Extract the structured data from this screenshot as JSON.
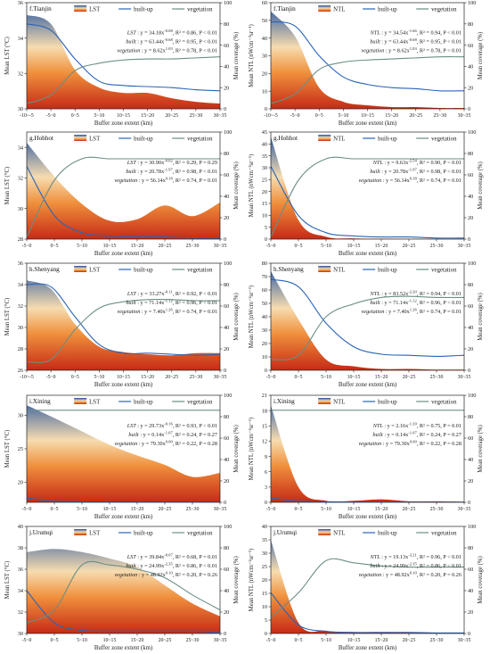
{
  "colors": {
    "builtup": "#2a64b6",
    "vegetation": "#6b8e86",
    "blue_top": "#1e4f9e",
    "cream": "#f6dcb0",
    "orange": "#f0903c",
    "red_bottom": "#c62a16"
  },
  "chart_data": [
    {
      "id": "tianjin-lst",
      "type": "area",
      "panel_label": "f.Tianjin",
      "metric": "LST",
      "legend": [
        "LST",
        "built-up",
        "vegetation"
      ],
      "ylabel": "Mean LST (°C)",
      "y2label": "Mean coverage (%)",
      "xlabel": "Buffer zone extent (km)",
      "ylim": [
        30,
        36
      ],
      "yticks": [
        30,
        32,
        34,
        36
      ],
      "y2lim": [
        0,
        100
      ],
      "y2ticks": [
        0,
        20,
        40,
        60,
        80,
        100
      ],
      "categories": [
        "-10~-5",
        "-5~0",
        "0~5",
        "5~10",
        "10~15",
        "15~20",
        "20~25",
        "25~30",
        "30~35"
      ],
      "series": [
        {
          "name": "LST",
          "axis": "left",
          "values": [
            35.3,
            34.8,
            32.2,
            31.2,
            30.9,
            30.9,
            30.6,
            30.4,
            30.3
          ]
        },
        {
          "name": "built-up",
          "axis": "right",
          "values": [
            80,
            74,
            47,
            26,
            22,
            21,
            20,
            18,
            17
          ]
        },
        {
          "name": "vegetation",
          "axis": "right",
          "values": [
            5,
            13,
            36,
            43,
            46,
            47,
            47,
            48,
            49
          ]
        }
      ],
      "equations": [
        "LST : y = 34.18x^{-0.08}, R² = 0.86, P < 0.01",
        "built : y = 63.44x^{-0.68}, R² = 0.95, P < 0.01",
        "vegetation : y = 8.62x^{1.03}, R² = 0.78, P < 0.01"
      ]
    },
    {
      "id": "tianjin-ntl",
      "type": "area",
      "panel_label": "f.Tianjin",
      "metric": "NTL",
      "legend": [
        "NTL",
        "built-up",
        "vegetation"
      ],
      "ylabel": "Mean NTL (nWcm⁻²sr⁻¹)",
      "y2label": "Mean coverage (%)",
      "xlabel": "Buffer zone extent (km)",
      "ylim": [
        0,
        60
      ],
      "yticks": [
        0,
        10,
        20,
        30,
        40,
        50,
        60
      ],
      "y2lim": [
        0,
        100
      ],
      "y2ticks": [
        0,
        20,
        40,
        60,
        80,
        100
      ],
      "categories": [
        "-10~-5",
        "-5~0",
        "0~5",
        "5~10",
        "10~15",
        "15~20",
        "20~25",
        "25~30",
        "30~35"
      ],
      "series": [
        {
          "name": "NTL",
          "axis": "left",
          "values": [
            55,
            41,
            12,
            4,
            2,
            1,
            1,
            0.5,
            0.5
          ]
        },
        {
          "name": "built-up",
          "axis": "right",
          "values": [
            82,
            78,
            50,
            30,
            23,
            20,
            19,
            17,
            17
          ]
        },
        {
          "name": "vegetation",
          "axis": "right",
          "values": [
            5,
            14,
            37,
            44,
            46,
            47,
            48,
            49,
            49
          ]
        }
      ],
      "equations": [
        "NTL : y = 34.54x^{-1.66}, R² = 0.94, P < 0.01",
        "built : y = 63.44x^{-0.68}, R² = 0.95, P < 0.01",
        "vegetation : y = 8.62x^{1.03}, R² = 0.78, P < 0.01"
      ]
    },
    {
      "id": "hohhot-lst",
      "type": "area",
      "panel_label": "g.Hohhot",
      "metric": "LST",
      "legend": [
        "LST",
        "built-up",
        "vegetation"
      ],
      "ylabel": "Mean LST (°C)",
      "y2label": "Mean coverage (%)",
      "xlabel": "Buffer zone extent (km)",
      "ylim": [
        28,
        35
      ],
      "yticks": [
        28,
        30,
        32,
        34
      ],
      "y2lim": [
        0,
        100
      ],
      "y2ticks": [
        0,
        20,
        40,
        60,
        80,
        100
      ],
      "categories": [
        "-5~0",
        "0~5",
        "5~10",
        "10~15",
        "15~20",
        "20~25",
        "25~30",
        "30~35"
      ],
      "series": [
        {
          "name": "LST",
          "axis": "left",
          "values": [
            34.3,
            32.1,
            30.3,
            29.2,
            29.3,
            30.2,
            29.5,
            30.4
          ]
        },
        {
          "name": "built-up",
          "axis": "right",
          "values": [
            68,
            22,
            6,
            3,
            2,
            2,
            1,
            1
          ]
        },
        {
          "name": "vegetation",
          "axis": "right",
          "values": [
            2,
            55,
            75,
            75,
            75,
            75,
            75,
            75
          ]
        }
      ],
      "equations": [
        "LST : y = 30.90x^{-0.02}, R² = 0.29, P = 0.29",
        "built : y = 20.78x^{-1.97}, R² = 0.98, P < 0.01",
        "vegetation : y = 56.14x^{0.18}, R² = 0.74, P = 0.01"
      ]
    },
    {
      "id": "hohhot-ntl",
      "type": "area",
      "panel_label": "g.Hohhot",
      "metric": "NTL",
      "legend": [
        "NTL",
        "built-up",
        "vegetation"
      ],
      "ylabel": "Mean NTL (nWcm⁻²sr⁻¹)",
      "y2label": "Mean coverage (%)",
      "xlabel": "Buffer zone extent (km)",
      "ylim": [
        0,
        45
      ],
      "yticks": [
        0,
        5,
        10,
        15,
        20,
        25,
        30,
        35,
        40,
        45
      ],
      "y2lim": [
        0,
        100
      ],
      "y2ticks": [
        0,
        20,
        40,
        60,
        80,
        100
      ],
      "categories": [
        "-5~0",
        "0~5",
        "5~10",
        "10~15",
        "15~20",
        "20~25",
        "25~30",
        "30~35"
      ],
      "series": [
        {
          "name": "NTL",
          "axis": "left",
          "values": [
            43,
            8,
            1,
            0.3,
            0.2,
            0.1,
            0.1,
            0.1
          ]
        },
        {
          "name": "built-up",
          "axis": "right",
          "values": [
            68,
            22,
            6,
            3,
            2,
            2,
            1,
            1
          ]
        },
        {
          "name": "vegetation",
          "axis": "right",
          "values": [
            2,
            55,
            75,
            75,
            75,
            75,
            75,
            75
          ]
        }
      ],
      "equations": [
        "NTL : y = 9.63x^{-2.54}, R² = 0.90, P < 0.01",
        "built : y = 20.78x^{-1.97}, R² = 0.98, P < 0.01",
        "vegetation : y = 56.14x^{0.18}, R² = 0.74, P = 0.01"
      ]
    },
    {
      "id": "shenyang-lst",
      "type": "area",
      "panel_label": "h.Shenyang",
      "metric": "LST",
      "legend": [
        "LST",
        "built-up",
        "vegetation"
      ],
      "ylabel": "Mean LST (°C)",
      "y2label": "Mean coverage (%)",
      "xlabel": "Buffer zone extent (km)",
      "ylim": [
        26,
        36
      ],
      "yticks": [
        26,
        28,
        30,
        32,
        34,
        36
      ],
      "y2lim": [
        0,
        100
      ],
      "y2ticks": [
        0,
        20,
        40,
        60,
        80,
        100
      ],
      "categories": [
        "-10~-5",
        "-5~0",
        "0~5",
        "5~10",
        "10~15",
        "15~20",
        "20~25",
        "25~30",
        "30~35"
      ],
      "series": [
        {
          "name": "LST",
          "axis": "left",
          "values": [
            34.4,
            33.6,
            30.3,
            28.2,
            27.7,
            27.5,
            27.4,
            27.6,
            27.6
          ]
        },
        {
          "name": "built-up",
          "axis": "right",
          "values": [
            80,
            78,
            50,
            24,
            16,
            16,
            15,
            14,
            15
          ]
        },
        {
          "name": "vegetation",
          "axis": "right",
          "values": [
            8,
            10,
            38,
            58,
            64,
            66,
            66,
            65,
            65
          ]
        }
      ],
      "equations": [
        "LST : y = 33.27x^{-0.11}, R² = 0.92, P < 0.01",
        "built : y = 71.14x^{-1.12}, R² = 0.96, P < 0.01",
        "vegetation : y = 7.40x^{1.26}, R² = 0.74, P = 0.01"
      ]
    },
    {
      "id": "shenyang-ntl",
      "type": "area",
      "panel_label": "h.Shenyang",
      "metric": "NTL",
      "legend": [
        "NTL",
        "built-up",
        "vegetation"
      ],
      "ylabel": "Mean NTL (nWcm⁻²sr⁻¹)",
      "y2label": "Mean coverage (%)",
      "xlabel": "Buffer zone extent (km)",
      "ylim": [
        0,
        80
      ],
      "yticks": [
        0,
        10,
        20,
        30,
        40,
        50,
        60,
        70,
        80
      ],
      "y2lim": [
        0,
        100
      ],
      "y2ticks": [
        0,
        20,
        40,
        60,
        80,
        100
      ],
      "categories": [
        "-5~0",
        "0~5",
        "5~10",
        "10~15",
        "15~20",
        "20~25",
        "25~30",
        "30~35"
      ],
      "series": [
        {
          "name": "NTL",
          "axis": "left",
          "values": [
            74,
            38,
            8,
            3,
            1,
            1,
            0.5,
            0.5
          ]
        },
        {
          "name": "built-up",
          "axis": "right",
          "values": [
            85,
            78,
            44,
            22,
            15,
            14,
            13,
            14
          ]
        },
        {
          "name": "vegetation",
          "axis": "right",
          "values": [
            10,
            14,
            50,
            62,
            68,
            69,
            68,
            68
          ]
        }
      ],
      "equations": [
        "NTL : y = 83.52x^{-2.20}, R² = 0.94, P < 0.01",
        "built : y = 71.14x^{-1.12}, R² = 0.96, P < 0.01",
        "vegetation : y = 7.40x^{1.26}, R² = 0.74, P = 0.01"
      ]
    },
    {
      "id": "xining-lst",
      "type": "area",
      "panel_label": "i.Xining",
      "metric": "LST",
      "legend": [
        "LST",
        "built-up",
        "vegetation"
      ],
      "ylabel": "Mean LST (°C)",
      "y2label": "Mean coverage (%)",
      "xlabel": "Buffer zone extent (km)",
      "ylim": [
        17,
        33
      ],
      "yticks": [
        20,
        25,
        30
      ],
      "y2lim": [
        0,
        100
      ],
      "y2ticks": [
        0,
        20,
        40,
        60,
        80,
        100
      ],
      "categories": [
        "-5~0",
        "0~5",
        "5~10",
        "10~15",
        "15~20",
        "20~25",
        "25~30",
        "30~35"
      ],
      "series": [
        {
          "name": "LST",
          "axis": "left",
          "values": [
            31.5,
            29.6,
            27.6,
            25.6,
            24.0,
            22.6,
            20.8,
            21.4
          ]
        },
        {
          "name": "built-up",
          "axis": "right",
          "values": [
            4,
            1,
            0.5,
            0.3,
            0.3,
            0.2,
            0.2,
            0.2
          ]
        },
        {
          "name": "vegetation",
          "axis": "right",
          "values": [
            86,
            86,
            86,
            86,
            86,
            86,
            86,
            86
          ]
        }
      ],
      "equations": [
        "LST : y = 29.73x^{-0.16}, R² = 0.93, P < 0.01",
        "built : y = 0.14x^{-1.07}, R² = 0.24, P = 0.27",
        "vegetation : y = 79.30x^{0.00}, R² = 0.22, P = 0.28"
      ]
    },
    {
      "id": "xining-ntl",
      "type": "area",
      "panel_label": "i.Xining",
      "metric": "NTL",
      "legend": [
        "NTL",
        "built-up",
        "vegetation"
      ],
      "ylabel": "Mean NTL (nWcm⁻²sr⁻¹)",
      "y2label": "Mean coverage (%)",
      "xlabel": "Buffer zone extent (km)",
      "ylim": [
        0,
        21
      ],
      "yticks": [
        0,
        3,
        6,
        9,
        12,
        15,
        18,
        21
      ],
      "y2lim": [
        0,
        100
      ],
      "y2ticks": [
        0,
        20,
        40,
        60,
        80,
        100
      ],
      "categories": [
        "-5~0",
        "0~5",
        "5~10",
        "10~15",
        "15~20",
        "20~25",
        "25~30",
        "30~35"
      ],
      "series": [
        {
          "name": "NTL",
          "axis": "left",
          "values": [
            19,
            3,
            0.3,
            0.3,
            0.6,
            0.2,
            0.2,
            0.1
          ]
        },
        {
          "name": "built-up",
          "axis": "right",
          "values": [
            4,
            1,
            0.5,
            0.3,
            0.3,
            0.2,
            0.2,
            0.2
          ]
        },
        {
          "name": "vegetation",
          "axis": "right",
          "values": [
            86,
            86,
            86,
            86,
            86,
            86,
            86,
            86
          ]
        }
      ],
      "equations": [
        "NTL : y = 2.16x^{-1.39}, R² = 0.75, P = 0.01",
        "built : y = 0.14x^{-1.07}, R² = 0.24, P = 0.27",
        "vegetation : y = 79.30x^{0.00}, R² = 0.22, P = 0.28"
      ]
    },
    {
      "id": "urumqi-lst",
      "type": "area",
      "panel_label": "j.Urumqi",
      "metric": "LST",
      "legend": [
        "LST",
        "built-up",
        "vegetation"
      ],
      "ylabel": "Mean LST (°C)",
      "y2label": "Mean coverage (%)",
      "xlabel": "Buffer zone extent (km)",
      "ylim": [
        30,
        40
      ],
      "yticks": [
        30,
        32,
        34,
        36,
        38,
        40
      ],
      "y2lim": [
        0,
        100
      ],
      "y2ticks": [
        0,
        20,
        40,
        60,
        80,
        100
      ],
      "categories": [
        "-5~0",
        "0~5",
        "5~10",
        "10~15",
        "15~20",
        "20~25",
        "25~30",
        "30~35"
      ],
      "series": [
        {
          "name": "LST",
          "axis": "left",
          "values": [
            37.6,
            37.9,
            37.6,
            37.0,
            36.2,
            34.5,
            32.8,
            31.6
          ]
        },
        {
          "name": "built-up",
          "axis": "right",
          "values": [
            40,
            10,
            3,
            2,
            2,
            2,
            2,
            1
          ]
        },
        {
          "name": "vegetation",
          "axis": "right",
          "values": [
            10,
            22,
            64,
            64,
            60,
            52,
            36,
            22
          ]
        }
      ],
      "equations": [
        "LST : y = 39.84x^{-0.07}, R² = 0.68, P = 0.01",
        "built : y = 24.99x^{-2.35}, R² = 0.86, P < 0.01",
        "vegetation : y = 48.92x^{0.10}, R² = 0.20, P = 0.26"
      ]
    },
    {
      "id": "urumqi-ntl",
      "type": "area",
      "panel_label": "j.Urumqi",
      "metric": "NTL",
      "legend": [
        "NTL",
        "built-up",
        "vegetation"
      ],
      "ylabel": "Mean NTL (nWcm⁻²sr⁻¹)",
      "y2label": "Mean coverage (%)",
      "xlabel": "Buffer zone extent (km)",
      "ylim": [
        0,
        40
      ],
      "yticks": [
        0,
        5,
        10,
        15,
        20,
        25,
        30,
        35,
        40
      ],
      "y2lim": [
        0,
        100
      ],
      "y2ticks": [
        0,
        20,
        40,
        60,
        80,
        100
      ],
      "categories": [
        "-5~0",
        "0~5",
        "5~10",
        "10~15",
        "15~20",
        "20~25",
        "25~30",
        "30~35"
      ],
      "series": [
        {
          "name": "NTL",
          "axis": "left",
          "values": [
            35,
            4,
            1,
            0.5,
            0.5,
            0.3,
            0.2,
            0.2
          ]
        },
        {
          "name": "built-up",
          "axis": "right",
          "values": [
            38,
            8,
            2,
            1,
            1,
            1,
            0.5,
            0.5
          ]
        },
        {
          "name": "vegetation",
          "axis": "right",
          "values": [
            15,
            38,
            68,
            66,
            63,
            62,
            62,
            62
          ]
        }
      ],
      "equations": [
        "NTL : y = 19.13x^{-3.21}, R² = 0.96, P < 0.01",
        "built : y = 24.99x^{-2.35}, R² = 0.86, P < 0.01",
        "vegetation : y = 48.92x^{0.10}, R² = 0.20, P = 0.26"
      ]
    }
  ]
}
